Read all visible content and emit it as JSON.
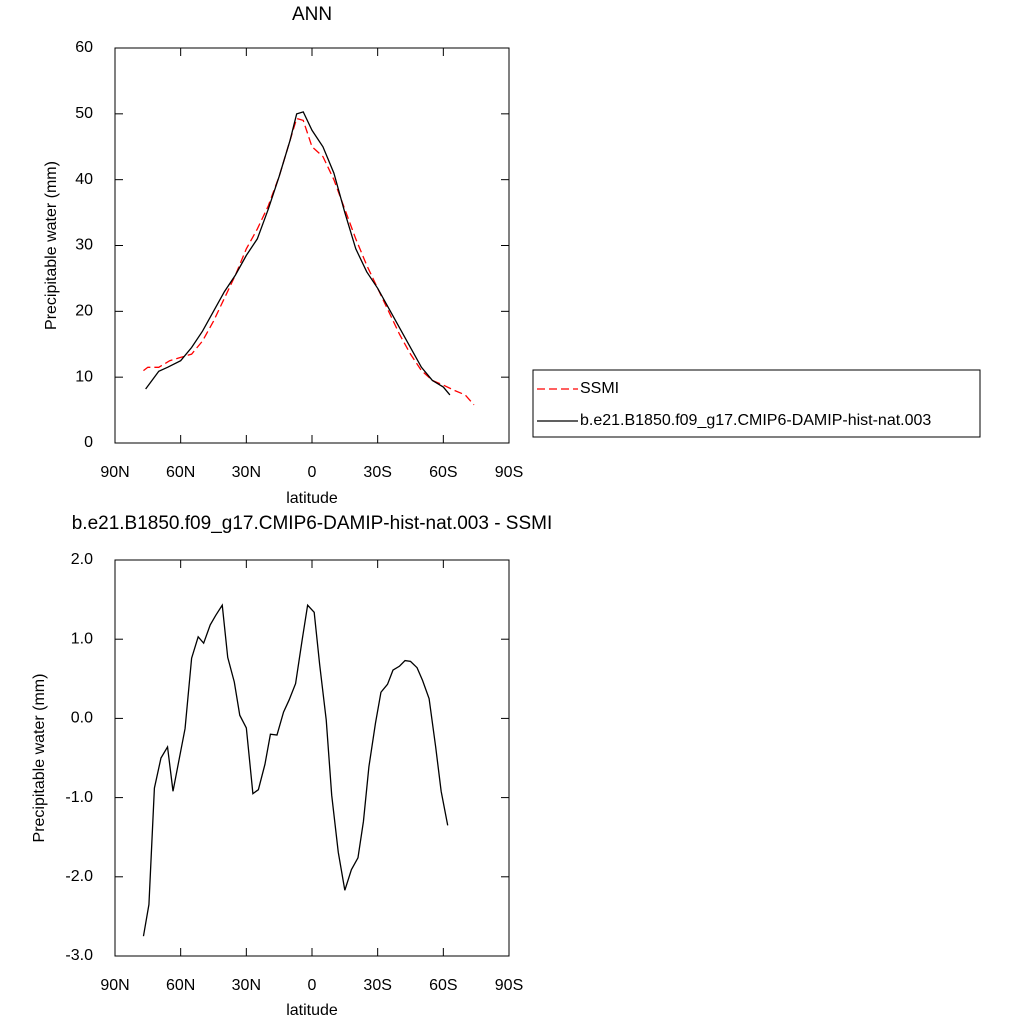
{
  "chart_data": [
    {
      "type": "line",
      "title": "ANN",
      "xlabel": "latitude",
      "ylabel": "Precipitable water (mm)",
      "xlim": [
        90,
        -90
      ],
      "xticks": [
        {
          "value": 90,
          "label": "90N"
        },
        {
          "value": 60,
          "label": "60N"
        },
        {
          "value": 30,
          "label": "30N"
        },
        0,
        {
          "value": -30,
          "label": "30S"
        },
        {
          "value": -60,
          "label": "60S"
        },
        {
          "value": -90,
          "label": "90S"
        }
      ],
      "ylim": [
        0,
        60
      ],
      "yticks": [
        0,
        10,
        20,
        30,
        40,
        50,
        60
      ],
      "legend": "right",
      "series": [
        {
          "name": "SSMI",
          "color": "#ff0000",
          "dashed": true,
          "x": [
            77,
            75,
            70,
            65,
            60,
            55,
            50,
            45,
            40,
            35,
            30,
            25,
            20,
            15,
            10,
            7,
            4,
            0,
            -5,
            -10,
            -15,
            -20,
            -25,
            -30,
            -35,
            -40,
            -45,
            -50,
            -55,
            -60,
            -65,
            -70,
            -74
          ],
          "values": [
            11,
            11.5,
            11.5,
            12.5,
            13,
            13.5,
            15.5,
            18.5,
            22,
            25.5,
            29.5,
            32.5,
            36,
            40.5,
            46,
            49.3,
            49,
            45,
            43.5,
            40,
            35.5,
            31,
            27,
            23.5,
            20,
            16.5,
            13.5,
            11,
            9.5,
            8.8,
            8,
            7.3,
            5.8
          ]
        },
        {
          "name": "b.e21.B1850.f09_g17.CMIP6-DAMIP-hist-nat.003",
          "color": "#000000",
          "dashed": false,
          "x": [
            76,
            70,
            66,
            60,
            55,
            50,
            45,
            40,
            35,
            30,
            25,
            20,
            15,
            10,
            7,
            4,
            0,
            -5,
            -10,
            -15,
            -20,
            -25,
            -30,
            -35,
            -40,
            -45,
            -50,
            -55,
            -60,
            -63
          ],
          "values": [
            8.2,
            10.9,
            11.5,
            12.5,
            14.5,
            17,
            20,
            23,
            25.5,
            28.5,
            31,
            35.5,
            40.5,
            46,
            50,
            50.3,
            47.5,
            45,
            41,
            35,
            29.5,
            26,
            23.5,
            20.5,
            17.5,
            14.5,
            11.5,
            9.5,
            8.5,
            7.3
          ]
        }
      ]
    },
    {
      "type": "line",
      "title": "b.e21.B1850.f09_g17.CMIP6-DAMIP-hist-nat.003 - SSMI",
      "xlabel": "latitude",
      "ylabel": "Precipitable water (mm)",
      "xlim": [
        90,
        -90
      ],
      "xticks": [
        {
          "value": 90,
          "label": "90N"
        },
        {
          "value": 60,
          "label": "60N"
        },
        {
          "value": 30,
          "label": "30N"
        },
        0,
        {
          "value": -30,
          "label": "30S"
        },
        {
          "value": -60,
          "label": "60S"
        },
        {
          "value": -90,
          "label": "90S"
        }
      ],
      "ylim": [
        -3,
        2
      ],
      "yticks": [
        {
          "value": -3,
          "label": "-3.0"
        },
        {
          "value": -2,
          "label": "-2.0"
        },
        {
          "value": -1,
          "label": "-1.0"
        },
        {
          "value": 0,
          "label": "0.0"
        },
        {
          "value": 1,
          "label": "1.0"
        },
        {
          "value": 2,
          "label": "2.0"
        }
      ],
      "color": "#000000",
      "x": [
        77,
        74.5,
        72,
        69,
        66,
        63.5,
        61,
        58,
        55,
        52,
        49.5,
        46.5,
        44,
        41,
        38.5,
        35.5,
        33,
        30,
        27,
        24.5,
        21.5,
        19,
        16,
        13,
        10.5,
        7.5,
        4.5,
        2,
        -1,
        -3.5,
        -6.5,
        -9,
        -12,
        -15,
        -18,
        -21,
        -23.5,
        -26,
        -29,
        -31.5,
        -34.5,
        -37,
        -40,
        -42.5,
        -45,
        -48,
        -50.5,
        -53.5,
        -56.5,
        -59,
        -62
      ],
      "values": [
        -2.75,
        -2.35,
        -0.88,
        -0.5,
        -0.36,
        -0.92,
        -0.56,
        -0.13,
        0.76,
        1.03,
        0.95,
        1.18,
        1.3,
        1.43,
        0.77,
        0.46,
        0.04,
        -0.12,
        -0.95,
        -0.9,
        -0.58,
        -0.2,
        -0.21,
        0.08,
        0.23,
        0.44,
        0.99,
        1.43,
        1.34,
        0.68,
        -0.02,
        -0.97,
        -1.69,
        -2.17,
        -1.91,
        -1.76,
        -1.3,
        -0.61,
        -0.06,
        0.33,
        0.43,
        0.61,
        0.66,
        0.73,
        0.72,
        0.64,
        0.48,
        0.25,
        -0.36,
        -0.92,
        -1.35
      ]
    }
  ]
}
